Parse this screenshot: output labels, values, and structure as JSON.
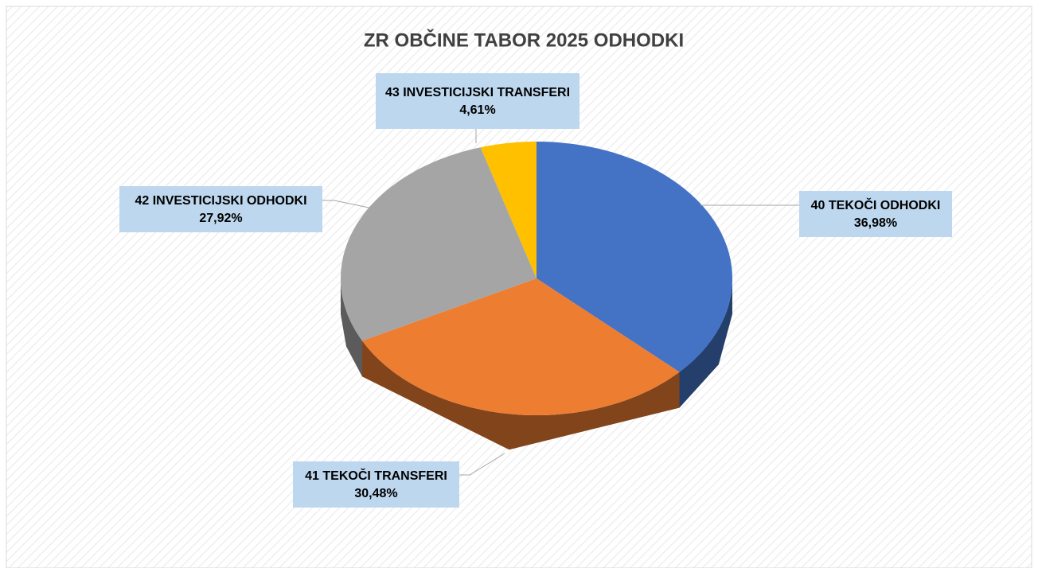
{
  "chart_data": {
    "type": "pie",
    "title": "ZR OBČINE TABOR 2025 ODHODKI",
    "categories": [
      "40 TEKOČI ODHODKI",
      "41 TEKOČI TRANSFERI",
      "42 INVESTICIJSKI ODHODKI",
      "43 INVESTICIJSKI TRANSFERI"
    ],
    "values": [
      36.98,
      30.48,
      27.92,
      4.61
    ],
    "value_labels": [
      "36,98%",
      "30,48%",
      "27,92%",
      "4,61%"
    ],
    "colors": [
      "#4472c4",
      "#ed7d31",
      "#a5a5a5",
      "#ffc000"
    ]
  }
}
